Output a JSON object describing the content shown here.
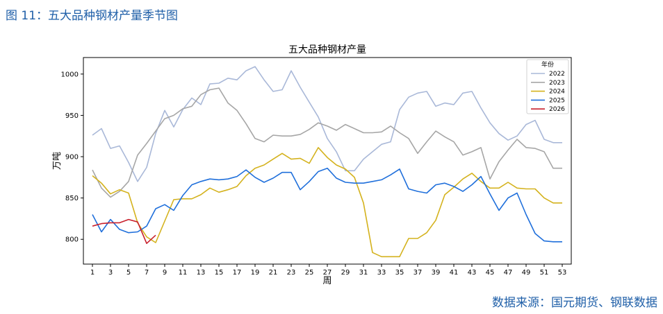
{
  "caption": "图 11：五大品种钢材产量季节图",
  "source": "数据来源：国元期货、钢联数据",
  "chart_data": {
    "type": "line",
    "title": "五大品种钢材产量",
    "xlabel": "周",
    "ylabel": "万吨",
    "xlim": [
      0,
      54
    ],
    "ylim": [
      770,
      1020
    ],
    "xticks": [
      1,
      3,
      5,
      7,
      9,
      11,
      13,
      15,
      17,
      19,
      21,
      23,
      25,
      27,
      29,
      31,
      33,
      35,
      37,
      39,
      41,
      43,
      45,
      47,
      49,
      51,
      53
    ],
    "yticks": [
      800,
      850,
      900,
      950,
      1000
    ],
    "legend_title": "年份",
    "legend_position": "top-right",
    "series": [
      {
        "name": "2022",
        "color": "#a9b8d8",
        "x": [
          1,
          2,
          3,
          4,
          5,
          6,
          7,
          8,
          9,
          10,
          11,
          12,
          13,
          14,
          15,
          16,
          17,
          18,
          19,
          20,
          21,
          22,
          23,
          24,
          25,
          26,
          27,
          28,
          29,
          30,
          31,
          32,
          33,
          34,
          35,
          36,
          37,
          38,
          39,
          40,
          41,
          42,
          43,
          44,
          45,
          46,
          47,
          48,
          49,
          50,
          51,
          52,
          53
        ],
        "values": [
          926,
          934,
          910,
          913,
          893,
          870,
          887,
          928,
          956,
          936,
          957,
          971,
          963,
          988,
          989,
          995,
          993,
          1004,
          1009,
          993,
          979,
          981,
          1004,
          984,
          966,
          948,
          922,
          906,
          883,
          883,
          897,
          906,
          915,
          918,
          957,
          972,
          977,
          979,
          961,
          965,
          963,
          977,
          979,
          959,
          941,
          928,
          920,
          925,
          939,
          944,
          921,
          917,
          917
        ]
      },
      {
        "name": "2023",
        "color": "#a6a6a6",
        "x": [
          1,
          2,
          3,
          4,
          5,
          6,
          7,
          8,
          9,
          10,
          11,
          12,
          13,
          14,
          15,
          16,
          17,
          18,
          19,
          20,
          21,
          22,
          23,
          24,
          25,
          26,
          27,
          28,
          29,
          30,
          31,
          32,
          33,
          34,
          35,
          36,
          37,
          38,
          39,
          40,
          41,
          42,
          43,
          44,
          45,
          46,
          47,
          48,
          49,
          50,
          51,
          52,
          53
        ],
        "values": [
          884,
          862,
          851,
          858,
          870,
          902,
          916,
          931,
          946,
          950,
          958,
          961,
          975,
          981,
          983,
          965,
          956,
          940,
          922,
          918,
          926,
          925,
          925,
          927,
          933,
          941,
          937,
          932,
          939,
          934,
          929,
          929,
          930,
          937,
          929,
          922,
          904,
          918,
          931,
          924,
          918,
          902,
          906,
          911,
          873,
          894,
          908,
          921,
          911,
          910,
          906,
          886,
          886
        ]
      },
      {
        "name": "2024",
        "color": "#d4b21d",
        "x": [
          1,
          2,
          3,
          4,
          5,
          6,
          7,
          8,
          9,
          10,
          11,
          12,
          13,
          14,
          15,
          16,
          17,
          18,
          19,
          20,
          21,
          22,
          23,
          24,
          25,
          26,
          27,
          28,
          29,
          30,
          31,
          32,
          33,
          34,
          35,
          36,
          37,
          38,
          39,
          40,
          41,
          42,
          43,
          44,
          45,
          46,
          47,
          48,
          49,
          50,
          51,
          52,
          53
        ],
        "values": [
          877,
          868,
          855,
          860,
          856,
          820,
          803,
          796,
          822,
          848,
          849,
          849,
          854,
          862,
          857,
          860,
          864,
          877,
          886,
          890,
          897,
          904,
          897,
          898,
          892,
          911,
          899,
          890,
          885,
          875,
          844,
          784,
          779,
          779,
          779,
          801,
          801,
          808,
          823,
          854,
          863,
          873,
          880,
          870,
          862,
          862,
          869,
          862,
          861,
          861,
          850,
          844,
          844
        ]
      },
      {
        "name": "2025",
        "color": "#1f6fdb",
        "x": [
          1,
          2,
          3,
          4,
          5,
          6,
          7,
          8,
          9,
          10,
          11,
          12,
          13,
          14,
          15,
          16,
          17,
          18,
          19,
          20,
          21,
          22,
          23,
          24,
          25,
          26,
          27,
          28,
          29,
          30,
          31,
          32,
          33,
          34,
          35,
          36,
          37,
          38,
          39,
          40,
          41,
          42,
          43,
          44,
          45,
          46,
          47,
          48,
          49,
          50,
          51,
          52,
          53
        ],
        "values": [
          830,
          809,
          824,
          812,
          808,
          809,
          816,
          837,
          842,
          835,
          853,
          866,
          870,
          873,
          872,
          873,
          876,
          884,
          875,
          869,
          874,
          881,
          881,
          860,
          870,
          882,
          886,
          874,
          869,
          868,
          868,
          870,
          872,
          878,
          885,
          861,
          858,
          856,
          866,
          868,
          864,
          858,
          866,
          876,
          855,
          835,
          850,
          856,
          830,
          807,
          798,
          797,
          797
        ]
      },
      {
        "name": "2026",
        "color": "#c8202c",
        "x": [
          1,
          2,
          3,
          4,
          5,
          6,
          7,
          8
        ],
        "values": [
          816,
          819,
          820,
          820,
          824,
          821,
          795,
          805
        ]
      }
    ]
  }
}
